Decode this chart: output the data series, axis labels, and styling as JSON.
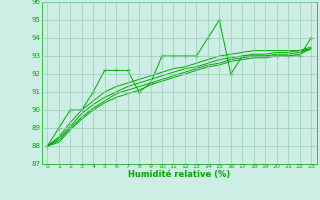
{
  "background_color": "#cceee4",
  "grid_color": "#99ccbb",
  "line_color": "#00aa00",
  "marker_color": "#00aa00",
  "xlabel": "Humidité relative (%)",
  "xlabel_color": "#00aa00",
  "tick_color": "#00aa00",
  "xlim": [
    -0.5,
    23.5
  ],
  "ylim": [
    87,
    96
  ],
  "yticks": [
    87,
    88,
    89,
    90,
    91,
    92,
    93,
    94,
    95,
    96
  ],
  "xticks": [
    0,
    1,
    2,
    3,
    4,
    5,
    6,
    7,
    8,
    9,
    10,
    11,
    12,
    13,
    14,
    15,
    16,
    17,
    18,
    19,
    20,
    21,
    22,
    23
  ],
  "series_with_markers": [
    [
      88,
      89,
      90,
      90,
      91,
      92.2,
      92.2,
      92.2,
      91,
      91.5,
      93,
      93,
      93,
      93,
      94,
      95,
      92,
      93,
      93,
      93,
      93,
      93,
      93,
      94
    ]
  ],
  "series_smooth": [
    [
      88,
      88.5,
      89.3,
      90,
      90.5,
      91,
      91.3,
      91.5,
      91.7,
      91.9,
      92.1,
      92.3,
      92.4,
      92.6,
      92.8,
      93.0,
      93.1,
      93.2,
      93.3,
      93.3,
      93.3,
      93.3,
      93.3,
      93.4
    ],
    [
      88,
      88.4,
      89.1,
      89.8,
      90.3,
      90.7,
      91.0,
      91.3,
      91.5,
      91.7,
      91.9,
      92.1,
      92.3,
      92.4,
      92.6,
      92.8,
      92.9,
      93.0,
      93.1,
      93.1,
      93.2,
      93.2,
      93.3,
      93.5
    ],
    [
      88,
      88.3,
      89.0,
      89.6,
      90.1,
      90.5,
      90.9,
      91.1,
      91.3,
      91.5,
      91.7,
      91.9,
      92.1,
      92.3,
      92.5,
      92.6,
      92.8,
      92.9,
      93.0,
      93.0,
      93.1,
      93.1,
      93.2,
      93.4
    ],
    [
      88,
      88.2,
      88.9,
      89.5,
      90.0,
      90.4,
      90.7,
      90.9,
      91.1,
      91.4,
      91.6,
      91.8,
      92.0,
      92.2,
      92.4,
      92.5,
      92.7,
      92.8,
      92.9,
      92.9,
      93.0,
      93.0,
      93.1,
      93.4
    ]
  ]
}
